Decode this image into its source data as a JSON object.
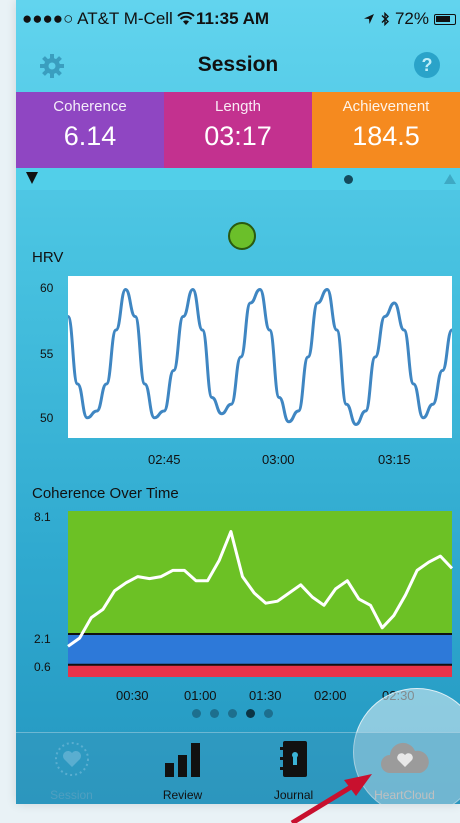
{
  "status_bar": {
    "carrier": "●●●●○ AT&T M-Cell",
    "time": "11:35 AM",
    "battery": "72%"
  },
  "nav": {
    "title": "Session",
    "help_label": "?"
  },
  "stats": {
    "coherence_label": "Coherence",
    "coherence_value": "6.14",
    "length_label": "Length",
    "length_value": "03:17",
    "achievement_label": "Achievement",
    "achievement_value": "184.5"
  },
  "hrv_chart": {
    "title": "HRV",
    "y_ticks": [
      "60",
      "55",
      "50"
    ],
    "x_ticks": [
      "02:45",
      "03:00",
      "03:15"
    ]
  },
  "coherence_chart": {
    "title": "Coherence Over Time",
    "y_ticks": [
      "8.1",
      "2.1",
      "0.6"
    ],
    "x_ticks": [
      "00:30",
      "01:00",
      "01:30",
      "02:00",
      "02:30"
    ]
  },
  "chart_data": [
    {
      "type": "line",
      "title": "HRV",
      "ylim": [
        49,
        61
      ],
      "x_ticks": [
        "02:45",
        "03:00",
        "03:15"
      ],
      "series": [
        {
          "values": [
            58,
            53,
            50.5,
            51,
            53,
            57,
            60,
            58,
            53,
            50.5,
            51,
            54,
            58,
            60,
            57,
            52,
            50.8,
            51.5,
            55,
            59,
            60,
            57,
            52,
            50.2,
            51,
            55,
            59,
            60,
            57,
            51.5,
            50,
            51,
            55,
            58,
            59,
            57,
            53,
            50.5,
            51.5,
            54,
            57
          ]
        }
      ]
    },
    {
      "type": "line",
      "title": "Coherence Over Time",
      "ylim": [
        0,
        8.1
      ],
      "x_ticks": [
        "00:30",
        "01:00",
        "01:30",
        "02:00",
        "02:30"
      ],
      "bands": [
        {
          "from": 0.0,
          "to": 0.6,
          "color": "#e8334a"
        },
        {
          "from": 0.6,
          "to": 2.1,
          "color": "#2d79d9"
        },
        {
          "from": 2.1,
          "to": 8.1,
          "color": "#6cc125"
        }
      ],
      "series": [
        {
          "values": [
            1.5,
            1.9,
            2.9,
            3.3,
            4.2,
            4.6,
            4.9,
            4.8,
            4.9,
            5.2,
            5.2,
            4.7,
            4.7,
            5.7,
            7.1,
            4.9,
            4.1,
            3.6,
            3.7,
            4.1,
            4.5,
            3.9,
            3.5,
            4.3,
            4.7,
            3.8,
            3.5,
            2.4,
            3.0,
            4.0,
            5.2,
            5.6,
            5.9,
            5.3
          ]
        }
      ]
    }
  ],
  "page_dots": {
    "count": 5,
    "active": 3
  },
  "tabs": [
    {
      "label": "Session",
      "icon": "heart-sun-icon"
    },
    {
      "label": "Review",
      "icon": "bar-chart-icon"
    },
    {
      "label": "Journal",
      "icon": "journal-icon"
    },
    {
      "label": "HeartCloud",
      "icon": "cloud-heart-icon"
    }
  ],
  "colors": {
    "coherence": "#8f46c2",
    "length": "#c3318f",
    "achievement": "#f58a1f",
    "hrv_line": "#3f86c2",
    "arrow": "#c8102e"
  }
}
